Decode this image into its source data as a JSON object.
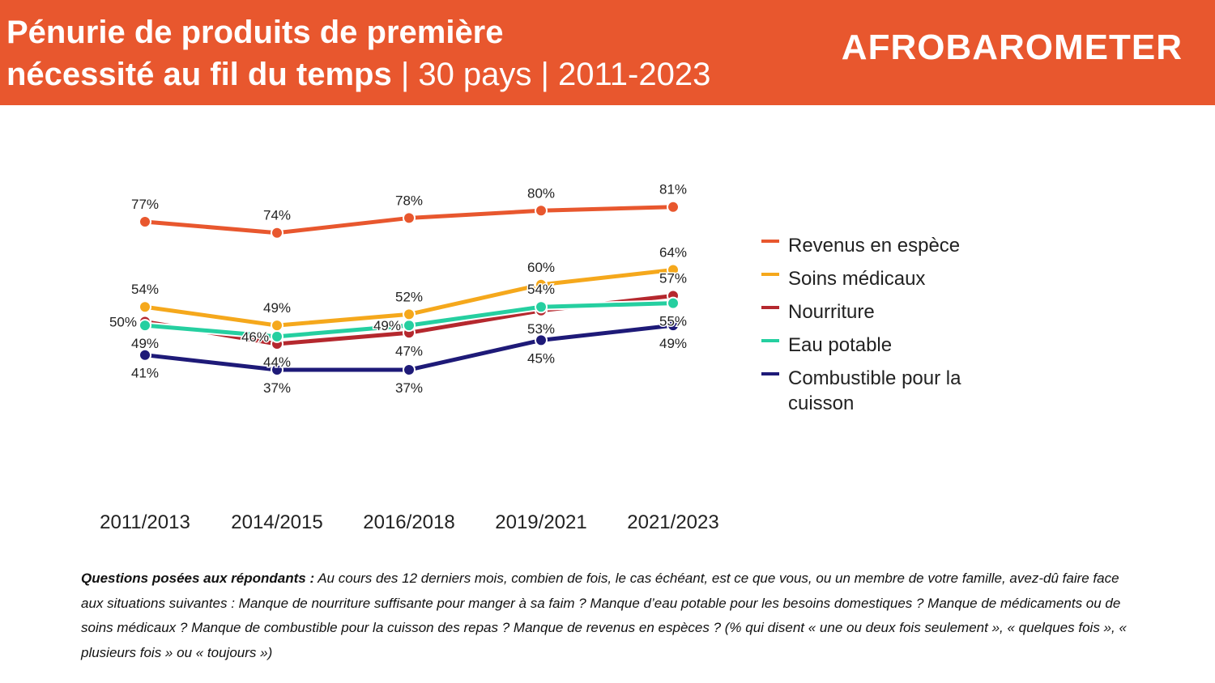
{
  "header": {
    "title_bold_1": "Pénurie de produits de première",
    "title_bold_2": "nécessité au fil du temps",
    "title_light": " | 30 pays | 2011-2023",
    "logo": "AFROBAROMETER"
  },
  "chart_data": {
    "type": "line",
    "title": "Pénurie de produits de première nécessité au fil du temps | 30 pays | 2011-2023",
    "categories": [
      "2011/2013",
      "2014/2015",
      "2016/2018",
      "2019/2021",
      "2021/2023"
    ],
    "ylim": [
      0,
      100
    ],
    "grid": false,
    "legend_position": "right",
    "series": [
      {
        "name": "Revenus en espèce",
        "color": "#E8572E",
        "values": [
          77,
          74,
          78,
          80,
          81
        ],
        "label_pos": [
          "a",
          "a",
          "a",
          "a",
          "a"
        ]
      },
      {
        "name": "Soins médicaux",
        "color": "#F5A81C",
        "values": [
          54,
          49,
          52,
          60,
          64
        ],
        "label_pos": [
          "a",
          "a",
          "a",
          "a",
          "a"
        ]
      },
      {
        "name": "Nourriture",
        "color": "#B5282E",
        "values": [
          50,
          44,
          47,
          53,
          57
        ],
        "label_pos": [
          "l",
          "b",
          "b",
          "b",
          "a"
        ]
      },
      {
        "name": "Eau potable",
        "color": "#25CFA0",
        "values": [
          49,
          46,
          49,
          54,
          55
        ],
        "label_pos": [
          "b",
          "l",
          "l",
          "a",
          "b"
        ]
      },
      {
        "name": "Combustible pour la cuisson",
        "color": "#1E1A78",
        "values": [
          41,
          37,
          37,
          45,
          49
        ],
        "label_pos": [
          "b",
          "b",
          "b",
          "b",
          "b"
        ]
      }
    ]
  },
  "note": {
    "label": "Questions posées aux répondants :",
    "text": " Au cours des 12 derniers mois, combien de fois, le cas échéant, est ce que vous, ou un membre de votre famille, avez-dû faire face aux situations suivantes : Manque de nourriture suffisante pour manger à sa faim ? Manque d’eau potable pour les besoins domestiques ? Manque de médicaments ou de soins médicaux ? Manque de combustible pour la cuisson des repas ? Manque de revenus en espèces ? (% qui disent « une ou deux fois seulement », « quelques fois », « plusieurs fois » ou « toujours »)"
  }
}
